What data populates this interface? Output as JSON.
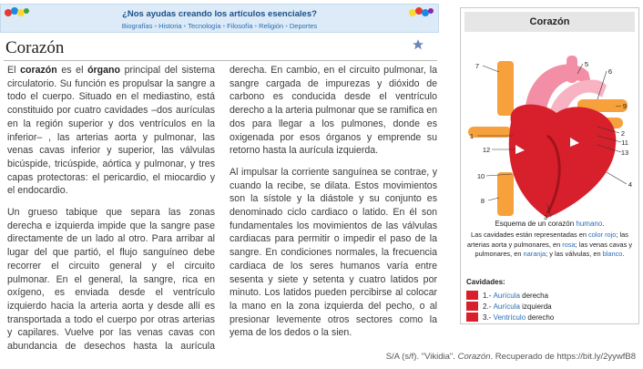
{
  "banner": {
    "question": "¿Nos ayudas creando los artículos esenciales?",
    "links": [
      "Biografías",
      "Historia",
      "Tecnología",
      "Filosofía",
      "Religión",
      "Deportes"
    ]
  },
  "article": {
    "title": "Corazón",
    "paragraphs": [
      [
        "El ",
        "corazón",
        " es el ",
        "órgano",
        " principal del sistema circulatorio. Su función es propulsar la sangre a todo el cuerpo. Situado en el mediastino, está constituido por cuatro cavidades –dos aurículas en la región superior y dos ventrículos en la inferior– , las arterias aorta y pulmonar, las venas cavas inferior y superior, las válvulas bicúspide, tricúspide, aórtica y pulmonar, y tres capas protectoras: el pericardio, el miocardio y el endocardio."
      ],
      [
        "Un grueso tabique que separa las zonas derecha e izquierda impide que la sangre pase directamente de un lado al otro. Para arribar al lugar del que partió, el flujo sanguíneo debe recorrer el circuito general y el circuito pulmonar. En el general, la sangre, rica en oxígeno, es enviada desde el ventrículo izquierdo hacia la arteria aorta y desde allí es transportada a todo el cuerpo por otras arterias y capilares. Vuelve por las venas cavas con abundancia de desechos hasta la aurícula derecha. En cambio, en el circuito pulmonar, la sangre cargada de impurezas y dióxido de carbono es conducida desde el ventrículo derecho a la arteria pulmonar que se ramifica en dos para llegar a los pulmones, donde es oxigenada por esos órganos y emprende su retorno hasta la aurícula izquierda."
      ],
      [
        "Al impulsar la corriente sanguínea se contrae, y cuando la recibe, se dilata. Estos movimientos son la sístole y la diástole y su conjunto es denominado ciclo cardiaco o latido. En él son fundamentales los movimientos de las válvulas cardiacas para permitir o impedir el paso de la sangre. En condiciones normales, la frecuencia cardiaca de los seres humanos varía entre sesenta y siete y setenta y cuatro latidos por minuto. Los latidos pueden percibirse al colocar la mano en la zona izquierda del pecho, o al presionar levemente otros sectores como la yema de los dedos o la sien."
      ]
    ]
  },
  "infobox": {
    "title": "Corazón",
    "diagram_labels": [
      "1",
      "2",
      "3",
      "4",
      "5",
      "6",
      "7",
      "8",
      "9",
      "10",
      "11",
      "12",
      "13"
    ],
    "caption_title": [
      "Esquema de un corazón ",
      "humano",
      "."
    ],
    "caption": [
      "Las cavidades están representadas en ",
      "color rojo",
      "; las arterias aorta y pulmonares, en ",
      "rosa",
      "; las venas cavas y pulmonares, en ",
      "naranja",
      "; y las válvulas, en ",
      "blanco",
      "."
    ],
    "cavities_title": "Cavidades:",
    "cavities": [
      [
        "1.- ",
        "Aurícula",
        " derecha"
      ],
      [
        "2.- ",
        "Aurícula",
        " izquierda"
      ],
      [
        "3.- ",
        "Ventrículo",
        " derecho"
      ]
    ]
  },
  "citation": [
    "S/A (s/f). \"Vikidia\". ",
    "Corazón",
    ". Recuperado de https://bit.ly/2yywfB8"
  ]
}
